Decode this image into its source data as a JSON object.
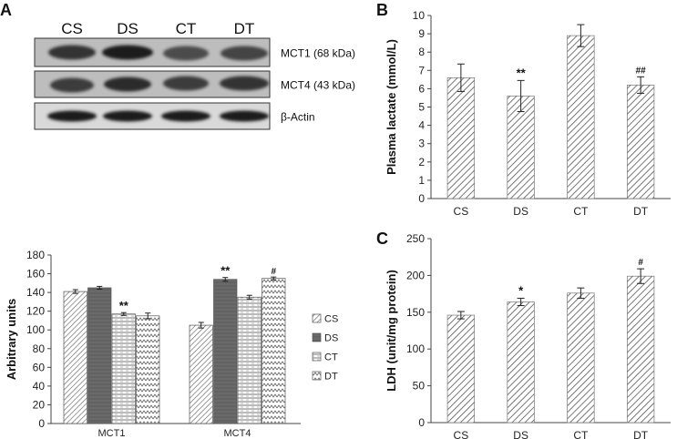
{
  "panels": {
    "A": "A",
    "B": "B",
    "C": "C"
  },
  "blot": {
    "lanes": [
      "CS",
      "DS",
      "CT",
      "DT"
    ],
    "rows": [
      {
        "label": "MCT1 (68 kDa)"
      },
      {
        "label": "MCT4 (43 kDa)"
      },
      {
        "label": "β-Actin"
      }
    ]
  },
  "chart_data": [
    {
      "id": "A-bar",
      "type": "bar",
      "title": "",
      "xlabel": "",
      "ylabel": "Arbitrary units",
      "ylim": [
        0,
        180
      ],
      "yticks": [
        0,
        20,
        40,
        60,
        80,
        100,
        120,
        140,
        160,
        180
      ],
      "categories": [
        "MCT1",
        "MCT4"
      ],
      "series": [
        {
          "name": "CS",
          "values": [
            141,
            105
          ],
          "errors": [
            2,
            3
          ],
          "annotations": [
            "",
            ""
          ]
        },
        {
          "name": "DS",
          "values": [
            145,
            154
          ],
          "errors": [
            1.5,
            2
          ],
          "annotations": [
            "",
            "**"
          ]
        },
        {
          "name": "CT",
          "values": [
            117,
            135
          ],
          "errors": [
            1.5,
            2
          ],
          "annotations": [
            "**",
            ""
          ]
        },
        {
          "name": "DT",
          "values": [
            115,
            155
          ],
          "errors": [
            3,
            1.5
          ],
          "annotations": [
            "",
            "#"
          ]
        }
      ],
      "legend": "right"
    },
    {
      "id": "B-bar",
      "type": "bar",
      "title": "",
      "xlabel": "",
      "ylabel": "Plasma lactate (mmol/L)",
      "ylim": [
        0,
        10
      ],
      "yticks": [
        0,
        1,
        2,
        3,
        4,
        5,
        6,
        7,
        8,
        9,
        10
      ],
      "categories": [
        "CS",
        "DS",
        "CT",
        "DT"
      ],
      "values": [
        6.6,
        5.6,
        8.9,
        6.2
      ],
      "errors": [
        0.75,
        0.85,
        0.6,
        0.45
      ],
      "annotations": [
        "",
        "**",
        "",
        "##"
      ]
    },
    {
      "id": "C-bar",
      "type": "bar",
      "title": "",
      "xlabel": "",
      "ylabel": "LDH (unit/mg protein)",
      "ylim": [
        0,
        250
      ],
      "yticks": [
        0,
        50,
        100,
        150,
        200,
        250
      ],
      "categories": [
        "CS",
        "DS",
        "CT",
        "DT"
      ],
      "values": [
        146,
        164,
        176,
        199
      ],
      "errors": [
        5,
        5,
        7,
        10
      ],
      "annotations": [
        "",
        "*",
        "",
        "#"
      ]
    }
  ]
}
